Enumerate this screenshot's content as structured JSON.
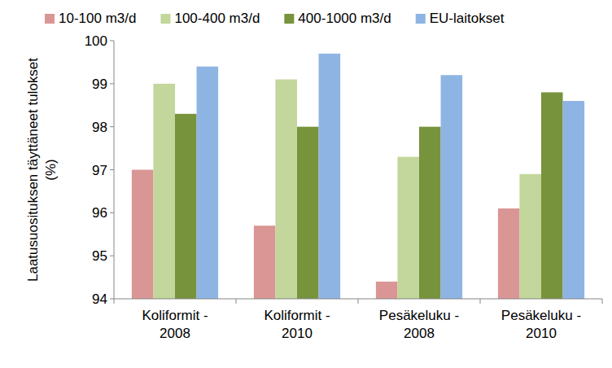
{
  "chart_data": {
    "type": "bar",
    "y_label": "Laatusuosituksen täyttäneet tulokset (%)",
    "categories": [
      "Koliformit - 2008",
      "Koliformit - 2010",
      "Pesäkeluku - 2008",
      "Pesäkeluku - 2010"
    ],
    "series": [
      {
        "name": "10-100 m3/d",
        "color": "#d99694",
        "values": [
          97.0,
          95.7,
          94.4,
          96.1
        ]
      },
      {
        "name": "100-400 m3/d",
        "color": "#c3d69b",
        "values": [
          99.0,
          99.1,
          97.3,
          96.9
        ]
      },
      {
        "name": "400-1000 m3/d",
        "color": "#77933c",
        "values": [
          98.3,
          98.0,
          98.0,
          98.8
        ]
      },
      {
        "name": "EU-laitokset",
        "color": "#8eb4e3",
        "values": [
          99.4,
          99.7,
          99.2,
          98.6
        ]
      }
    ],
    "ylim": [
      94,
      100
    ],
    "yticks": [
      94,
      95,
      96,
      97,
      98,
      99,
      100
    ],
    "grid": false,
    "legend": "top"
  }
}
